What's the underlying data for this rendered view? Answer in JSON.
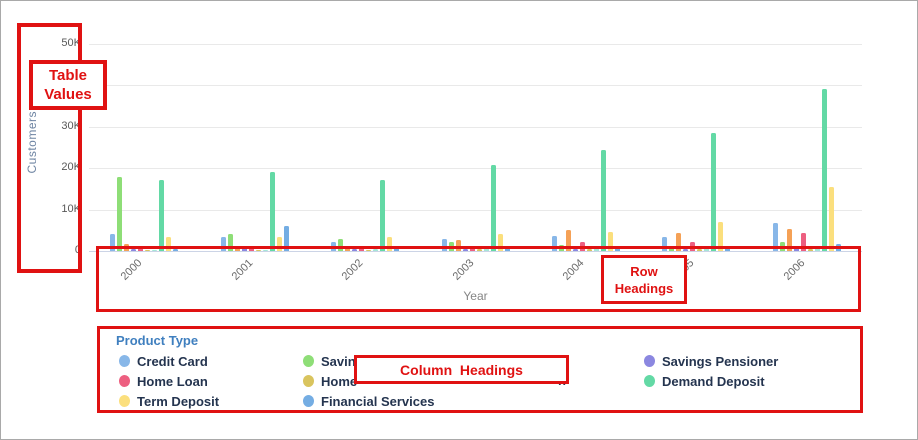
{
  "annotations": {
    "accent_color": "#e01212",
    "table_values": {
      "line1": "Table",
      "line2": "Values"
    },
    "row_headings": {
      "line1": "Row",
      "line2": "Headings"
    },
    "column_headings": {
      "label": "Column  Headings"
    }
  },
  "chart_data": {
    "type": "bar",
    "title": "",
    "xlabel": "Year",
    "ylabel": "Customers",
    "ylim": [
      0,
      50000
    ],
    "ytick_labels": [
      "50K",
      "40K",
      "30K",
      "20K",
      "10K",
      "0"
    ],
    "grid": "horizontal",
    "legend_position": "bottom",
    "legend_title": "Product Type",
    "categories": [
      "2000",
      "2001",
      "2002",
      "2003",
      "2004",
      "2005",
      "2006"
    ],
    "series": [
      {
        "name": "Credit Card",
        "color": "#88b7e8",
        "values": [
          4000,
          3400,
          2300,
          3000,
          3600,
          3300,
          6800
        ]
      },
      {
        "name": "Savings",
        "color": "#8ede77",
        "values": [
          18000,
          4100,
          2900,
          2200,
          1500,
          1300,
          2100
        ]
      },
      {
        "name": "",
        "color": "#f5a156",
        "values": [
          1600,
          1100,
          1000,
          2600,
          5100,
          4400,
          5400
        ]
      },
      {
        "name": "Savings Pensioner",
        "color": "#8b87e0",
        "values": [
          400,
          1100,
          400,
          500,
          400,
          400,
          1200
        ]
      },
      {
        "name": "Home Loan",
        "color": "#ed5f80",
        "values": [
          700,
          1100,
          1000,
          1300,
          2100,
          2300,
          4400
        ]
      },
      {
        "name": "Home",
        "color": "#d9c45e",
        "values": [
          200,
          300,
          300,
          400,
          500,
          500,
          500
        ]
      },
      {
        "name": "",
        "color": "#a5e6d8",
        "values": [
          300,
          300,
          400,
          700,
          800,
          900,
          1100
        ]
      },
      {
        "name": "Demand Deposit",
        "color": "#63d9a5",
        "values": [
          17200,
          19000,
          17100,
          20900,
          24500,
          28500,
          39200
        ]
      },
      {
        "name": "Term Deposit",
        "color": "#fbdf7d",
        "values": [
          3400,
          3500,
          3300,
          4100,
          4600,
          7100,
          15400
        ]
      },
      {
        "name": "Financial Services",
        "color": "#74ade3",
        "values": [
          400,
          6100,
          800,
          1000,
          1100,
          1100,
          1600
        ]
      }
    ]
  },
  "legend": {
    "title": "Product Type",
    "items": [
      {
        "label": "Credit Card",
        "color": "#88b7e8",
        "col": 0,
        "row": 0
      },
      {
        "label": "Home Loan",
        "color": "#ed5f80",
        "col": 0,
        "row": 1
      },
      {
        "label": "Term Deposit",
        "color": "#fbdf7d",
        "col": 0,
        "row": 2
      },
      {
        "label": "Savings",
        "color": "#8ede77",
        "col": 1,
        "row": 0
      },
      {
        "label": "Home",
        "color": "#d9c45e",
        "col": 1,
        "row": 1
      },
      {
        "label": "Financial Services",
        "color": "#74ade3",
        "col": 1,
        "row": 2
      },
      {
        "label": "Savings Pensioner",
        "color": "#8b87e0",
        "col": 3,
        "row": 0
      },
      {
        "label": "Demand Deposit",
        "color": "#63d9a5",
        "col": 3,
        "row": 1
      }
    ],
    "partial_item": {
      "visible_text": "n",
      "col": 2,
      "row": 1
    }
  }
}
